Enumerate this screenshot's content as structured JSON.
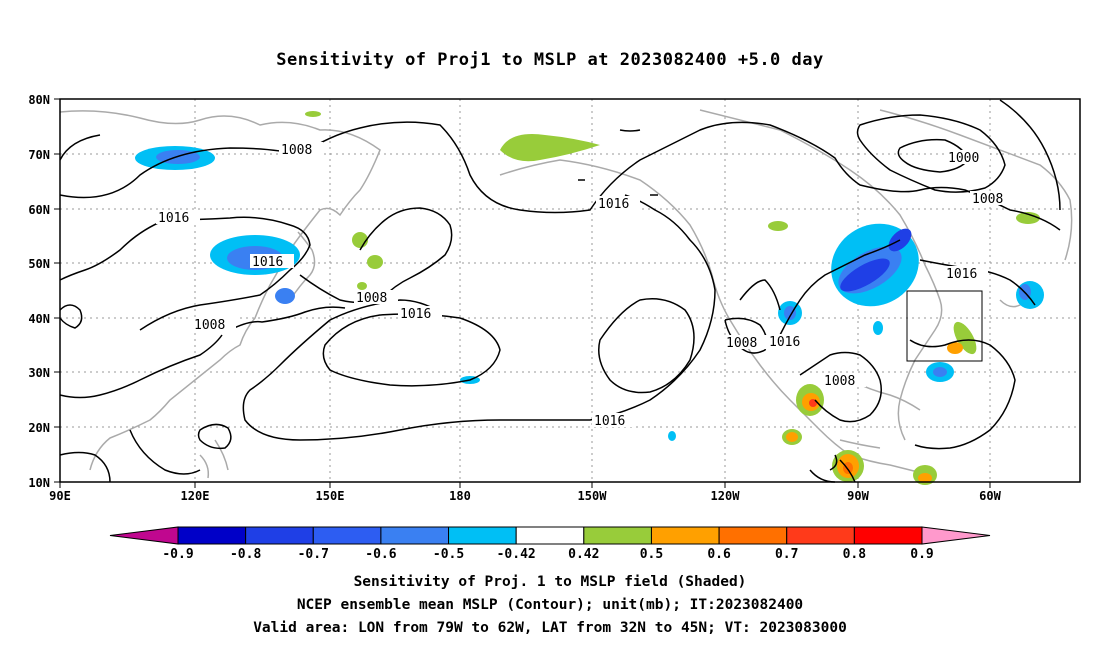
{
  "title": "Sensitivity of Proj1 to MSLP at 2023082400 +5.0 day",
  "lat_labels": [
    "80N",
    "70N",
    "60N",
    "50N",
    "40N",
    "30N",
    "20N",
    "10N"
  ],
  "lon_labels": [
    "90E",
    "120E",
    "150E",
    "180",
    "150W",
    "120W",
    "90W",
    "60W"
  ],
  "contour_labels": [
    "1008",
    "1016",
    "1016",
    "1008",
    "1008",
    "1016",
    "1016",
    "1016",
    "1008",
    "1016",
    "1008",
    "1000",
    "1008",
    "1016"
  ],
  "colorbar": {
    "labels": [
      "-0.9",
      "-0.8",
      "-0.7",
      "-0.6",
      "-0.5",
      "-0.42",
      "0.42",
      "0.5",
      "0.6",
      "0.7",
      "0.8",
      "0.9"
    ],
    "colors": [
      "#c0078f",
      "#0000c8",
      "#1f3fe6",
      "#2d5df2",
      "#3a80f2",
      "#00bff5",
      "#ffffff",
      "#98cc3a",
      "#ffa000",
      "#ff7000",
      "#ff3a1a",
      "#ff0000",
      "#ff99cc"
    ]
  },
  "captions": [
    "Sensitivity of Proj. 1 to MSLP field (Shaded)",
    "NCEP ensemble mean MSLP (Contour); unit(mb); IT:2023082400",
    "Valid area: LON from 79W to 62W, LAT from 32N to 45N; VT: 2023083000"
  ]
}
